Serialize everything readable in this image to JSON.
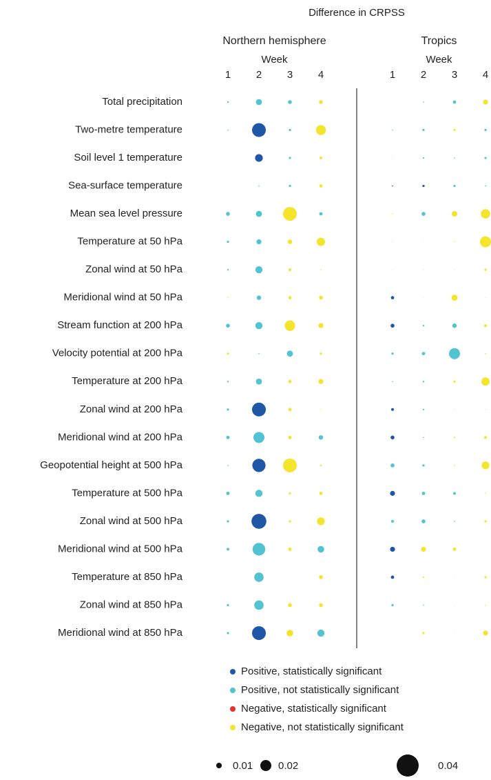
{
  "chart_data": {
    "type": "bubble-grid",
    "title": "Difference in CRPSS",
    "rows": [
      "Total precipitation",
      "Two-metre temperature",
      "Soil level 1 temperature",
      "Sea-surface temperature",
      "Mean sea level pressure",
      "Temperature at 50 hPa",
      "Zonal wind at 50 hPa",
      "Meridional wind at 50 hPa",
      "Stream function at 200 hPa",
      "Velocity potential at 200 hPa",
      "Temperature at 200 hPa",
      "Zonal wind at 200 hPa",
      "Meridional wind at 200 hPa",
      "Geopotential height at 500 hPa",
      "Temperature at 500 hPa",
      "Zonal wind at 500 hPa",
      "Meridional wind at 500 hPa",
      "Temperature at 850 hPa",
      "Zonal wind at 850 hPa",
      "Meridional wind at 850 hPa"
    ],
    "series": [
      {
        "name": "Positive, statistically significant",
        "color": "#1f56a5"
      },
      {
        "name": "Positive, not statistically significant",
        "color": "#52c3d1"
      },
      {
        "name": "Negative, statistically significant",
        "color": "#e8312f"
      },
      {
        "name": "Negative, not statistically significant",
        "color": "#f4e42c"
      }
    ],
    "panels": [
      {
        "name": "Northern hemisphere",
        "x_label": "Week",
        "weeks": [
          1,
          2,
          3,
          4
        ],
        "values": [
          [
            0.003,
            0.011,
            0.007,
            0.007
          ],
          [
            0.002,
            0.025,
            0.004,
            0.018
          ],
          [
            null,
            0.014,
            0.004,
            0.005
          ],
          [
            null,
            0.002,
            0.004,
            0.006
          ],
          [
            0.007,
            0.011,
            0.025,
            0.006
          ],
          [
            0.004,
            0.009,
            0.008,
            0.015
          ],
          [
            0.003,
            0.013,
            0.005,
            0.002
          ],
          [
            0.002,
            0.008,
            0.006,
            0.007
          ],
          [
            0.007,
            0.013,
            0.019,
            0.009
          ],
          [
            0.004,
            0.002,
            0.011,
            0.004
          ],
          [
            0.003,
            0.011,
            0.006,
            0.009
          ],
          [
            0.004,
            0.025,
            0.006,
            0.002
          ],
          [
            0.006,
            0.02,
            0.006,
            0.008
          ],
          [
            0.002,
            0.024,
            0.025,
            0.003
          ],
          [
            0.006,
            0.013,
            0.004,
            0.006
          ],
          [
            0.004,
            0.027,
            0.004,
            0.014
          ],
          [
            0.005,
            0.023,
            0.006,
            0.012
          ],
          [
            null,
            0.017,
            null,
            0.007
          ],
          [
            0.004,
            0.017,
            0.007,
            0.007
          ],
          [
            0.004,
            0.025,
            0.012,
            0.013
          ]
        ],
        "classes": [
          [
            1,
            1,
            1,
            3
          ],
          [
            1,
            0,
            1,
            3
          ],
          [
            null,
            0,
            1,
            3
          ],
          [
            null,
            1,
            1,
            3
          ],
          [
            1,
            1,
            3,
            1
          ],
          [
            1,
            1,
            3,
            3
          ],
          [
            1,
            1,
            3,
            3
          ],
          [
            3,
            1,
            3,
            3
          ],
          [
            1,
            1,
            3,
            3
          ],
          [
            3,
            1,
            1,
            3
          ],
          [
            1,
            1,
            3,
            3
          ],
          [
            1,
            0,
            3,
            3
          ],
          [
            1,
            1,
            3,
            1
          ],
          [
            1,
            0,
            3,
            3
          ],
          [
            1,
            1,
            3,
            3
          ],
          [
            1,
            0,
            3,
            3
          ],
          [
            1,
            1,
            3,
            1
          ],
          [
            null,
            1,
            null,
            3
          ],
          [
            1,
            1,
            3,
            3
          ],
          [
            1,
            0,
            3,
            1
          ]
        ]
      },
      {
        "name": "Tropics",
        "x_label": "Week",
        "weeks": [
          1,
          2,
          3,
          4
        ],
        "values": [
          [
            null,
            0.002,
            0.006,
            0.009
          ],
          [
            0.002,
            0.004,
            0.004,
            0.004
          ],
          [
            0.001,
            0.003,
            0.002,
            0.004
          ],
          [
            0.002,
            0.004,
            0.004,
            0.002
          ],
          [
            0.002,
            0.007,
            0.01,
            0.017
          ],
          [
            0.001,
            0.001,
            0.002,
            0.02
          ],
          [
            0.001,
            0.001,
            0.001,
            0.004
          ],
          [
            0.006,
            0.001,
            0.011,
            0.001
          ],
          [
            0.007,
            0.003,
            0.008,
            0.005
          ],
          [
            0.004,
            0.006,
            0.02,
            0.002
          ],
          [
            0.002,
            0.003,
            0.004,
            0.015
          ],
          [
            0.005,
            0.003,
            0.001,
            0.001
          ],
          [
            0.007,
            0.002,
            0.003,
            0.005
          ],
          [
            0.007,
            0.004,
            0.002,
            0.014
          ],
          [
            0.009,
            0.006,
            0.005,
            0.002
          ],
          [
            0.005,
            0.007,
            0.002,
            0.004
          ],
          [
            0.009,
            0.009,
            0.006,
            null
          ],
          [
            0.006,
            0.003,
            0.001,
            0.004
          ],
          [
            0.004,
            0.002,
            0.001,
            0.002
          ],
          [
            null,
            0.004,
            0.001,
            0.009
          ]
        ],
        "classes": [
          [
            null,
            1,
            1,
            3
          ],
          [
            1,
            1,
            3,
            1
          ],
          [
            1,
            1,
            1,
            1
          ],
          [
            0,
            0,
            1,
            1
          ],
          [
            3,
            1,
            3,
            3
          ],
          [
            1,
            3,
            3,
            3
          ],
          [
            1,
            1,
            1,
            3
          ],
          [
            0,
            3,
            3,
            1
          ],
          [
            0,
            1,
            1,
            3
          ],
          [
            1,
            1,
            1,
            3
          ],
          [
            1,
            1,
            3,
            3
          ],
          [
            0,
            1,
            1,
            1
          ],
          [
            0,
            1,
            3,
            3
          ],
          [
            1,
            1,
            3,
            3
          ],
          [
            0,
            1,
            1,
            3
          ],
          [
            1,
            1,
            1,
            3
          ],
          [
            0,
            3,
            3,
            null
          ],
          [
            0,
            3,
            3,
            3
          ],
          [
            1,
            1,
            1,
            3
          ],
          [
            null,
            3,
            3,
            3
          ]
        ]
      }
    ],
    "size_legend": [
      0.01,
      0.02,
      0.04
    ]
  }
}
